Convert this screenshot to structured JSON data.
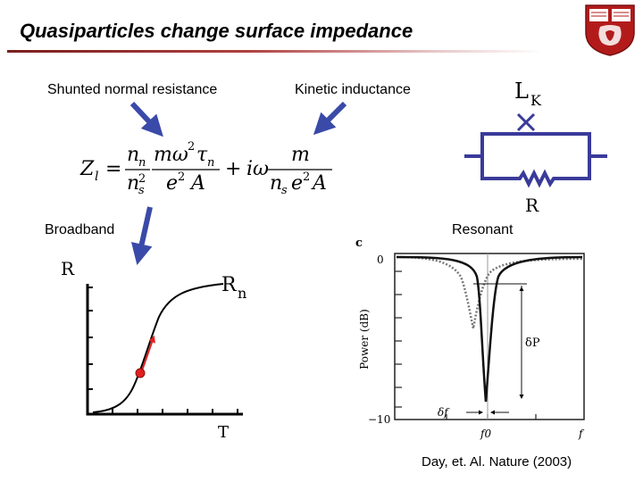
{
  "slide": {
    "title": "Quasiparticles change surface impedance",
    "label_shunted": "Shunted normal resistance",
    "label_kinetic": "Kinetic inductance",
    "label_broadband": "Broadband",
    "label_resonant": "Resonant",
    "citation": "Day, et. Al. Nature (2003)"
  },
  "circuit": {
    "inductor_label": "L",
    "inductor_subscript": "K",
    "resistor_label": "R"
  },
  "equation": {
    "lhs": "Z",
    "lhs_sub": "l",
    "t1_num": "n",
    "t1_num_sub": "n",
    "t1_den": "n",
    "t1_den_sub": "s",
    "t1_den_sup": "2",
    "t1b_num": "mω",
    "t1b_num_sup": "2",
    "t1b_num_tau": "τ",
    "t1b_num_tau_sub": "n",
    "t1b_den": "e",
    "t1b_den_sup": "2",
    "t1b_den_A": "A",
    "plus": "+",
    "iomega": "iω",
    "t2_num": "m",
    "t2_den_n": "n",
    "t2_den_sub": "s",
    "t2_den_e": "e",
    "t2_den_sup": "2",
    "t2_den_A": "A",
    "equals": "="
  },
  "broadband_plot": {
    "y_label": "R",
    "x_label": "T",
    "rn_label": "R",
    "rn_sub": "n",
    "marker_color": "#e02020",
    "curve_color": "#000000"
  },
  "resonance_plot": {
    "panel_letter": "c",
    "y_axis_title": "Power (dB)",
    "y_tick_top": "0",
    "y_tick_bottom": "−10",
    "x_label_f0": "f0",
    "x_label_f": "f",
    "delta_p": "δP",
    "delta_f": "δf"
  },
  "colors": {
    "arrow_blue": "#3a4aa8",
    "circuit_blue": "#3a3a9a",
    "title_rule": "#7a1e1e",
    "red": "#e02020"
  },
  "logo": {
    "name": "university-crest",
    "top_text": "COR\nGEN"
  }
}
